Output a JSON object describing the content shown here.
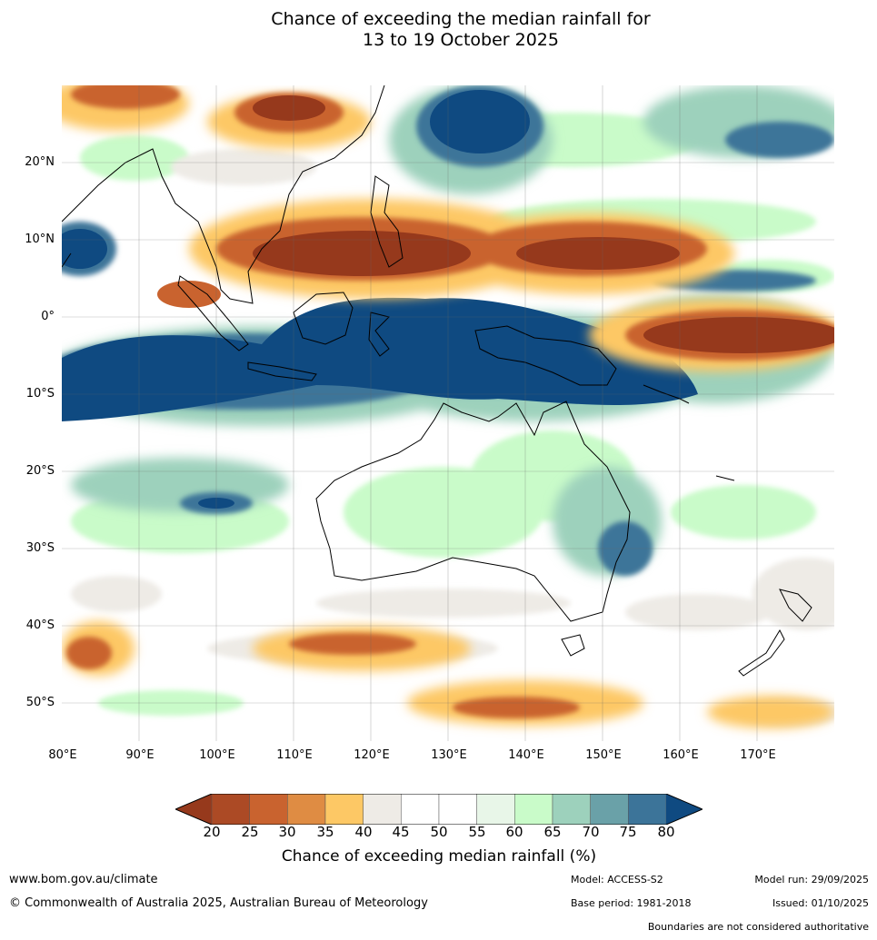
{
  "title": {
    "line1": "Chance of exceeding the median rainfall for",
    "line2": "13 to 19 October 2025"
  },
  "map": {
    "region": "Indian Ocean, Maritime Continent, Australia and Western Pacific",
    "latitude_labels": [
      "20°N",
      "10°N",
      "0°",
      "10°S",
      "20°S",
      "30°S",
      "40°S",
      "50°S"
    ],
    "longitude_labels": [
      "80°E",
      "90°E",
      "100°E",
      "110°E",
      "120°E",
      "130°E",
      "140°E",
      "150°E",
      "160°E",
      "170°E"
    ],
    "lat_range": [
      -55,
      30
    ],
    "lon_range": [
      80,
      180
    ],
    "pattern_notes": {
      "wet": "Broad band above median (blue) from eastern Indian Ocean across Indonesia to northern Australia and New Guinea",
      "dry": "Below median (brown) across Indochina, South China Sea, Philippines and equatorial western Pacific"
    }
  },
  "colorbar": {
    "title": "Chance of exceeding median rainfall (%)",
    "ticks": [
      "20",
      "25",
      "30",
      "35",
      "40",
      "45",
      "50",
      "55",
      "60",
      "65",
      "70",
      "75",
      "80"
    ],
    "colors": [
      "#96391c",
      "#ac4a25",
      "#c9632f",
      "#df8c43",
      "#fdc865",
      "#eeebe6",
      "#ffffff",
      "#ffffff",
      "#e8f6e8",
      "#c9fbc9",
      "#9dd1bc",
      "#6aa1a8",
      "#3c7499",
      "#0f4a81"
    ]
  },
  "footer": {
    "website": "www.bom.gov.au/climate",
    "copyright": "© Commonwealth of Australia 2025, Australian Bureau of Meteorology",
    "model": "Model: ACCESS-S2",
    "base_period": "Base period: 1981-2018",
    "model_run": "Model run: 29/09/2025",
    "issued": "Issued: 01/10/2025",
    "boundaries_note": "Boundaries are not considered authoritative"
  }
}
